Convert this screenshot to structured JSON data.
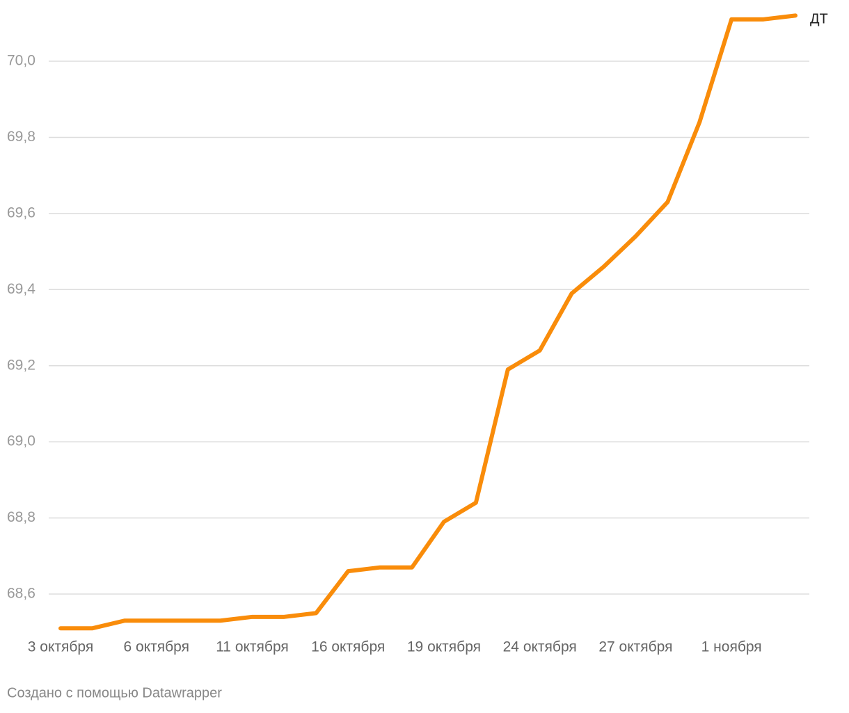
{
  "chart_data": {
    "type": "line",
    "categories": [
      "3 октября",
      null,
      null,
      "6 октября",
      null,
      null,
      "11 октября",
      null,
      null,
      "16 октября",
      null,
      null,
      "19 октября",
      null,
      null,
      "24 октября",
      null,
      null,
      "27 октября",
      null,
      null,
      "1 ноября",
      null,
      null
    ],
    "series": [
      {
        "name": "ДТ",
        "color": "#f98c0a",
        "values": [
          68.51,
          68.51,
          68.53,
          68.53,
          68.53,
          68.53,
          68.54,
          68.54,
          68.55,
          68.66,
          68.67,
          68.67,
          68.79,
          68.84,
          69.19,
          69.24,
          69.39,
          69.46,
          69.54,
          69.63,
          69.84,
          70.11,
          70.11,
          70.12
        ]
      }
    ],
    "ylim": [
      68.5,
      70.1
    ],
    "yticks": [
      {
        "value": 68.6,
        "label": "68,6"
      },
      {
        "value": 68.8,
        "label": "68,8"
      },
      {
        "value": 69.0,
        "label": "69,0"
      },
      {
        "value": 69.2,
        "label": "69,2"
      },
      {
        "value": 69.4,
        "label": "69,4"
      },
      {
        "value": 69.6,
        "label": "69,6"
      },
      {
        "value": 69.8,
        "label": "69,8"
      },
      {
        "value": 70.0,
        "label": "70,0"
      }
    ],
    "grid": true
  },
  "footer": "Создано с помощью Datawrapper"
}
